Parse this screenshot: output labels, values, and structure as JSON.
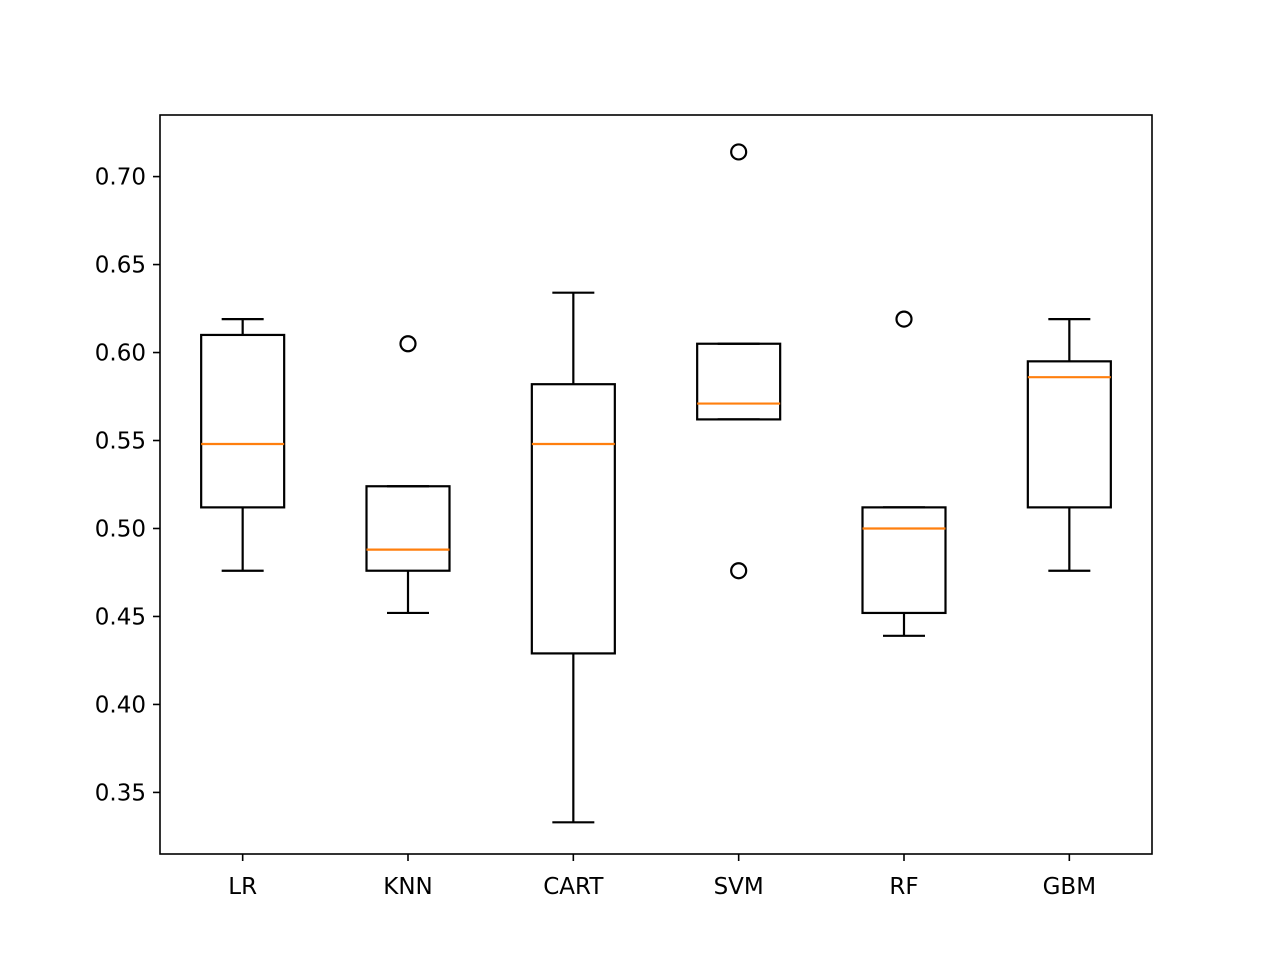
{
  "chart_data": {
    "type": "box",
    "title": "",
    "xlabel": "",
    "ylabel": "",
    "categories": [
      "LR",
      "KNN",
      "CART",
      "SVM",
      "RF",
      "GBM"
    ],
    "ylim": [
      0.315,
      0.735
    ],
    "yticks": [
      0.35,
      0.4,
      0.45,
      0.5,
      0.55,
      0.6,
      0.65,
      0.7
    ],
    "ytick_labels": [
      "0.35",
      "0.40",
      "0.45",
      "0.50",
      "0.55",
      "0.60",
      "0.65",
      "0.70"
    ],
    "grid": false,
    "boxes": [
      {
        "label": "LR",
        "whisker_low": 0.476,
        "q1": 0.512,
        "median": 0.548,
        "q3": 0.61,
        "whisker_high": 0.619,
        "outliers": []
      },
      {
        "label": "KNN",
        "whisker_low": 0.452,
        "q1": 0.476,
        "median": 0.488,
        "q3": 0.524,
        "whisker_high": 0.524,
        "outliers": [
          0.605
        ]
      },
      {
        "label": "CART",
        "whisker_low": 0.333,
        "q1": 0.429,
        "median": 0.548,
        "q3": 0.582,
        "whisker_high": 0.634,
        "outliers": []
      },
      {
        "label": "SVM",
        "whisker_low": 0.562,
        "q1": 0.562,
        "median": 0.571,
        "q3": 0.605,
        "whisker_high": 0.605,
        "outliers": [
          0.714,
          0.476
        ]
      },
      {
        "label": "RF",
        "whisker_low": 0.439,
        "q1": 0.452,
        "median": 0.5,
        "q3": 0.512,
        "whisker_high": 0.512,
        "outliers": [
          0.619
        ]
      },
      {
        "label": "GBM",
        "whisker_low": 0.476,
        "q1": 0.512,
        "median": 0.586,
        "q3": 0.595,
        "whisker_high": 0.619,
        "outliers": []
      }
    ],
    "colors": {
      "box": "#000000",
      "median": "#ff7f0e",
      "outlier": "#000000"
    }
  }
}
